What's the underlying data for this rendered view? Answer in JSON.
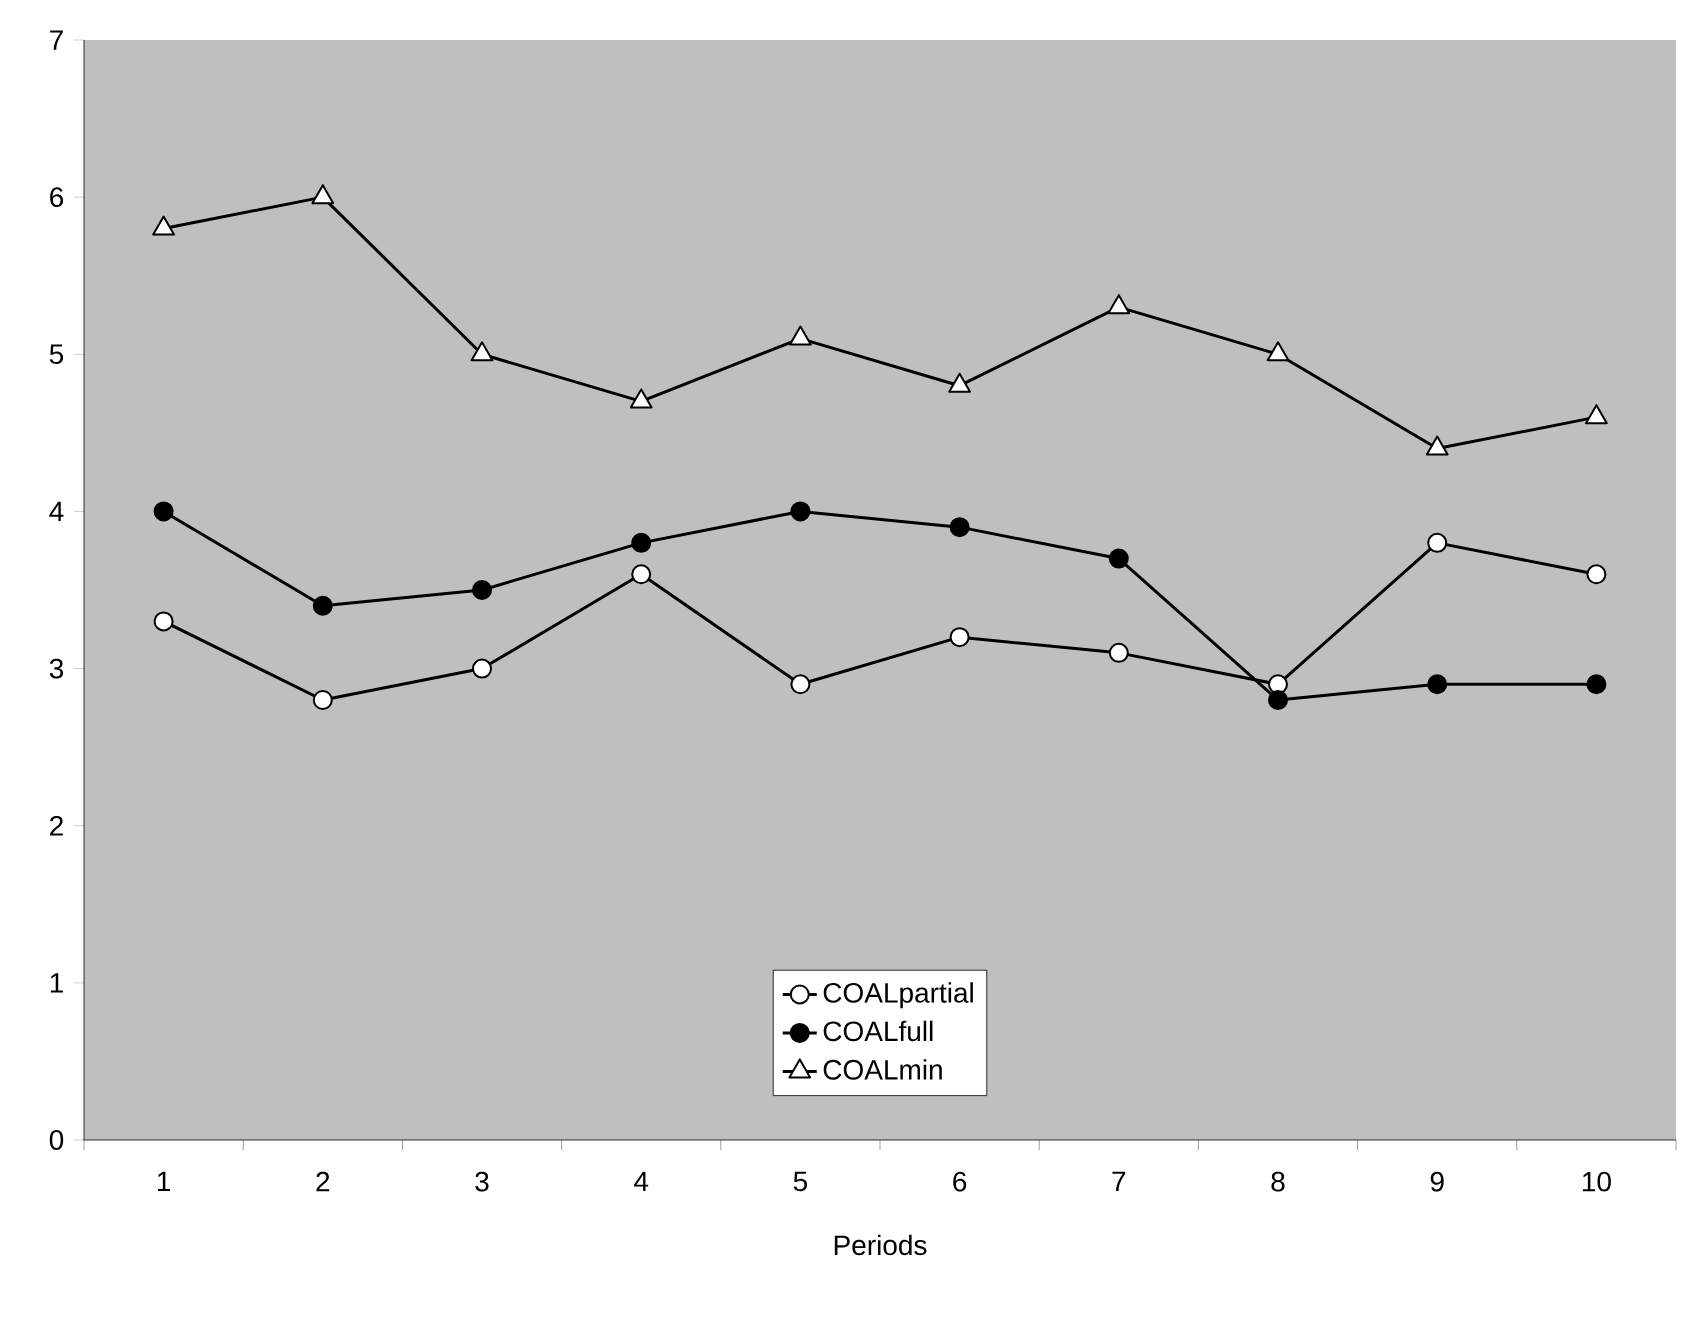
{
  "chart_data": {
    "type": "line",
    "xlabel": "Periods",
    "categories": [
      "1",
      "2",
      "3",
      "4",
      "5",
      "6",
      "7",
      "8",
      "9",
      "10"
    ],
    "ylim": [
      0,
      7
    ],
    "yticks": [
      0,
      1,
      2,
      3,
      4,
      5,
      6,
      7
    ],
    "grid": false,
    "legend": "bottom",
    "line_style": "solid",
    "series": [
      {
        "name": "COALpartial",
        "color": "#ffffff",
        "marker": "circle",
        "values": [
          3.3,
          2.8,
          3.0,
          3.6,
          2.9,
          3.2,
          3.1,
          2.9,
          3.8,
          3.6
        ]
      },
      {
        "name": "COALfull",
        "color": "#000000",
        "marker": "circle",
        "values": [
          4.0,
          3.4,
          3.5,
          3.8,
          4.0,
          3.9,
          3.7,
          2.8,
          2.9,
          2.9
        ]
      },
      {
        "name": "COALmin",
        "color": "#ffffff",
        "marker": "triangle",
        "values": [
          5.8,
          6.0,
          5.0,
          4.7,
          5.1,
          4.8,
          5.3,
          5.0,
          4.4,
          4.6
        ]
      }
    ]
  }
}
